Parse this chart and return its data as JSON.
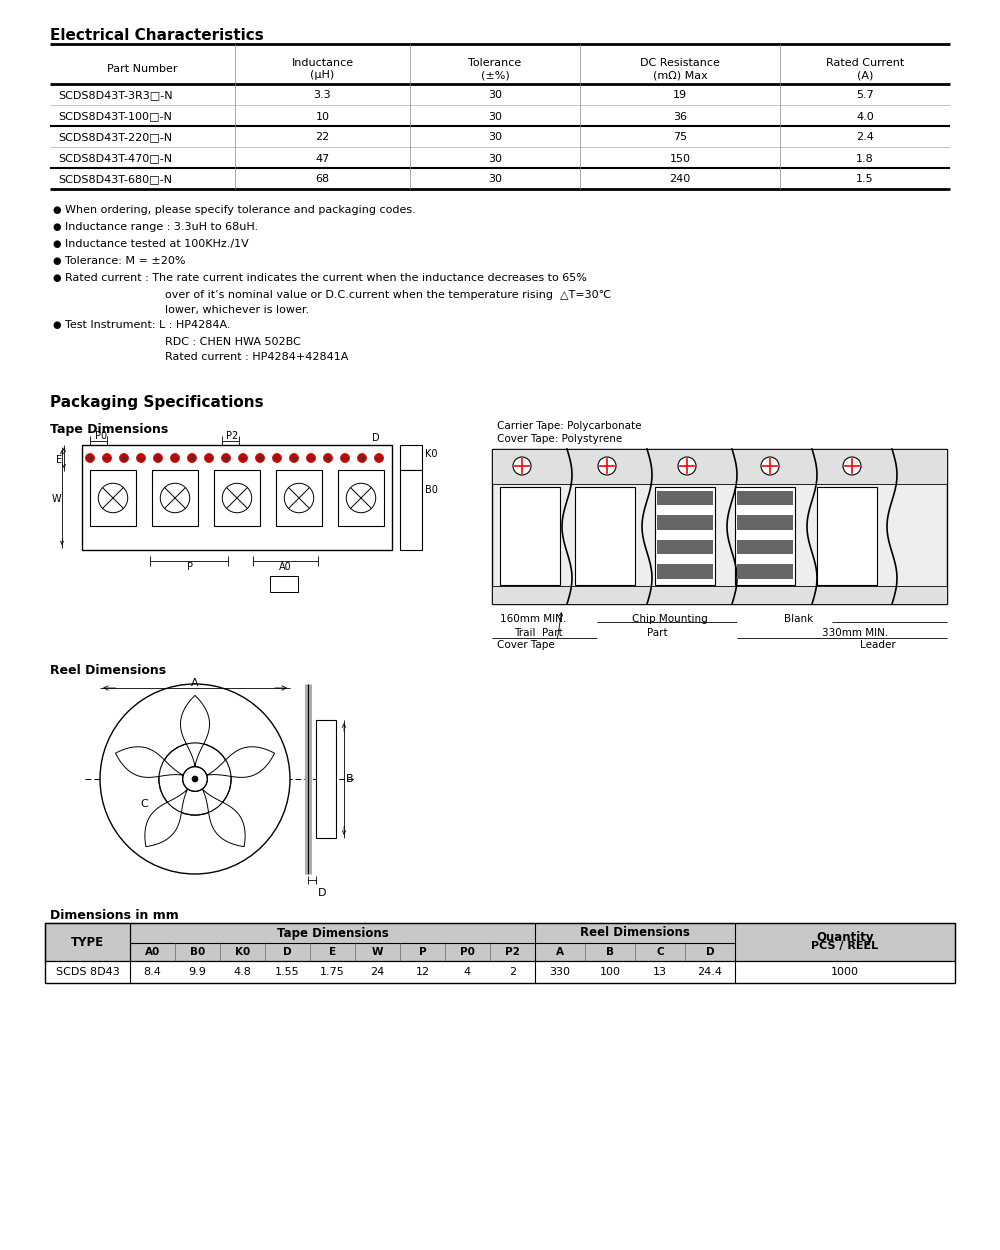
{
  "section1_title": "Electrical Characteristics",
  "table1_col_headers_line1": [
    "Part Number",
    "Inductance",
    "Tolerance",
    "DC Resistance",
    "Rated Current"
  ],
  "table1_col_headers_line2": [
    "",
    "(μH)",
    "(±%)",
    "(mΩ) Max",
    "(A)"
  ],
  "table1_data": [
    [
      "SCDS8D43T-3R3□-N",
      "3.3",
      "30",
      "19",
      "5.7"
    ],
    [
      "SCDS8D43T-100□-N",
      "10",
      "30",
      "36",
      "4.0"
    ],
    [
      "SCDS8D43T-220□-N",
      "22",
      "30",
      "75",
      "2.4"
    ],
    [
      "SCDS8D43T-470□-N",
      "47",
      "30",
      "150",
      "1.8"
    ],
    [
      "SCDS8D43T-680□-N",
      "68",
      "30",
      "240",
      "1.5"
    ]
  ],
  "notes": [
    [
      true,
      "When ordering, please specify tolerance and packaging codes."
    ],
    [
      true,
      "Inductance range : 3.3uH to 68uH."
    ],
    [
      true,
      "Inductance tested at 100KHz./1V"
    ],
    [
      true,
      "Tolerance: M = ±20%"
    ],
    [
      true,
      "Rated current : The rate current indicates the current when the inductance decreases to 65%"
    ],
    [
      false,
      "over of it’s nominal value or D.C.current when the temperature rising  △T=30℃"
    ],
    [
      false,
      "lower, whichever is lower."
    ],
    [
      true,
      "Test Instrument: L : HP4284A."
    ],
    [
      false,
      "RDC : CHEN HWA 502BC"
    ],
    [
      false,
      "Rated current : HP4284+42841A"
    ]
  ],
  "section2_title": "Packaging Specifications",
  "tape_dim_title": "Tape Dimensions",
  "reel_dim_title": "Reel Dimensions",
  "dim_mm_title": "Dimensions in mm",
  "table2_data": [
    "SCDS 8D43",
    "8.4",
    "9.9",
    "4.8",
    "1.55",
    "1.75",
    "24",
    "12",
    "4",
    "2",
    "330",
    "100",
    "13",
    "24.4",
    "1000"
  ],
  "bg_color": "#ffffff"
}
